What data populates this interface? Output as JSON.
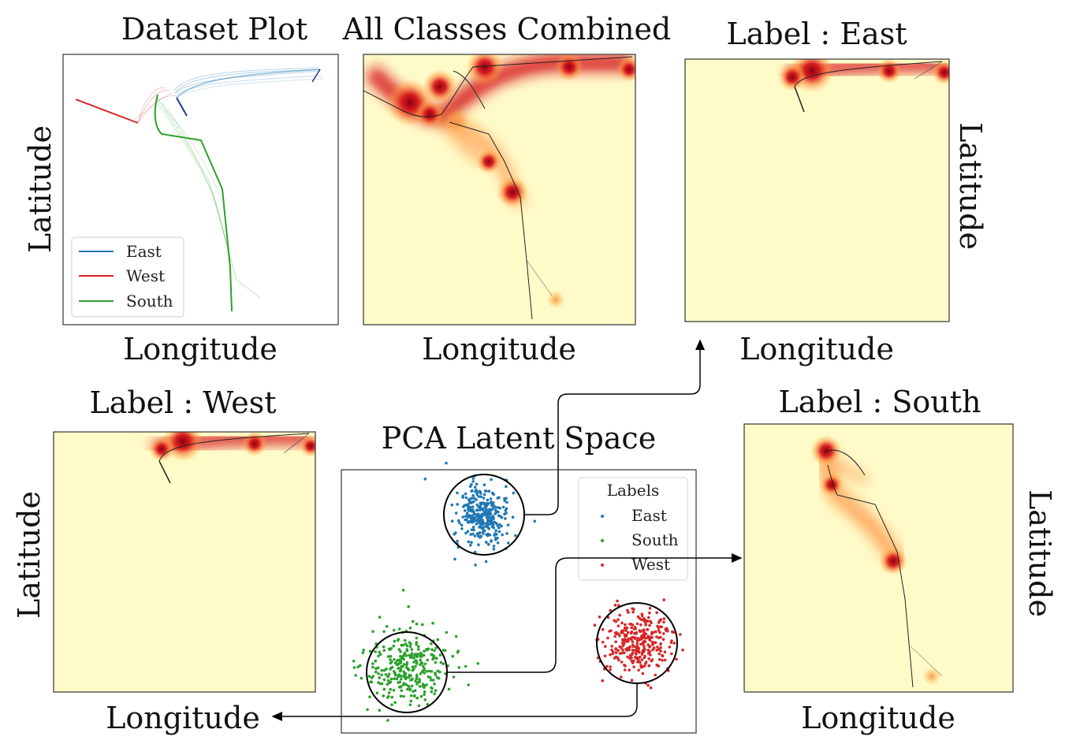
{
  "panels": {
    "dataset": {
      "title": "Dataset Plot",
      "xlabel": "Longitude",
      "ylabel": "Latitude"
    },
    "combined": {
      "title": "All Classes Combined",
      "xlabel": "Longitude"
    },
    "east": {
      "title": "Label : East",
      "xlabel": "Longitude",
      "ylabel": "Latitude"
    },
    "west": {
      "title": "Label : West",
      "xlabel": "Longitude",
      "ylabel": "Latitude"
    },
    "south": {
      "title": "Label : South",
      "xlabel": "Longitude",
      "ylabel": "Latitude"
    },
    "pca": {
      "title": "PCA Latent Space"
    }
  },
  "dataset_legend": [
    {
      "label": "East",
      "color": "#1f77b4"
    },
    {
      "label": "West",
      "color": "#d62728"
    },
    {
      "label": "South",
      "color": "#2ca02c"
    }
  ],
  "pca_legend": {
    "title": "Labels",
    "items": [
      {
        "label": "East",
        "color": "#1f77b4"
      },
      {
        "label": "South",
        "color": "#2ca02c"
      },
      {
        "label": "West",
        "color": "#d62728"
      }
    ]
  },
  "colors": {
    "heatmap_background": "#fffbc8",
    "heat_low": "#fdb84d",
    "heat_mid": "#e2231a",
    "heat_high": "#8b0011"
  }
}
